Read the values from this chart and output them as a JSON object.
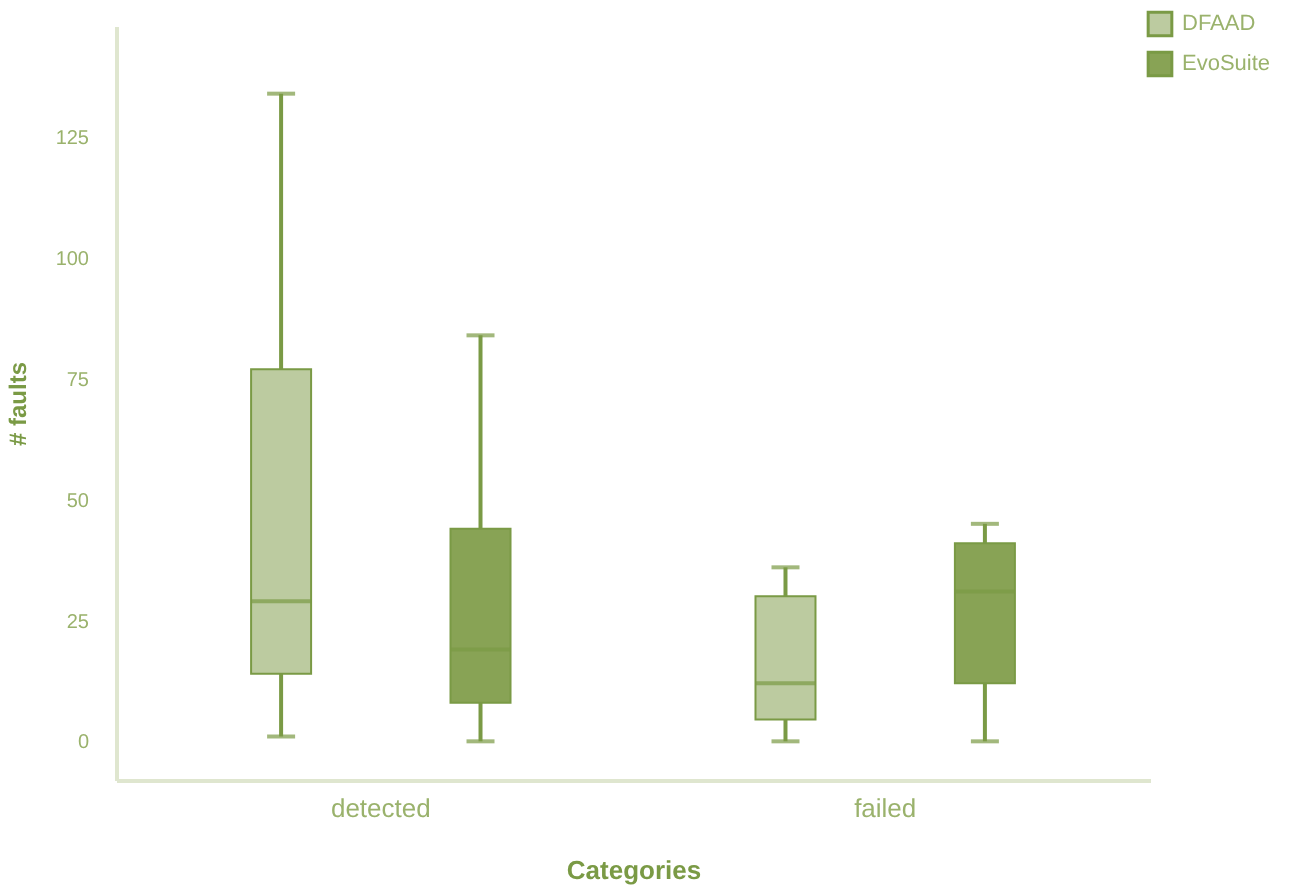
{
  "chart_data": {
    "type": "box",
    "xlabel": "Categories",
    "ylabel": "# faults",
    "categories": [
      "detected",
      "failed"
    ],
    "series": [
      {
        "name": "DFAAD",
        "color": "#bccba0",
        "boxes": [
          {
            "low": 1,
            "q1": 14,
            "median": 29,
            "q3": 77,
            "high": 134
          },
          {
            "low": 0,
            "q1": 4.5,
            "median": 12,
            "q3": 30,
            "high": 36
          }
        ]
      },
      {
        "name": "EvoSuite",
        "color": "#88a355",
        "boxes": [
          {
            "low": 0,
            "q1": 8,
            "median": 19,
            "q3": 44,
            "high": 84
          },
          {
            "low": 0,
            "q1": 12,
            "median": 31,
            "q3": 41,
            "high": 45
          }
        ]
      }
    ],
    "ylim": [
      -8,
      148
    ],
    "yticks": [
      0,
      25,
      50,
      75,
      100,
      125
    ],
    "grid": false,
    "legend": "top right"
  }
}
